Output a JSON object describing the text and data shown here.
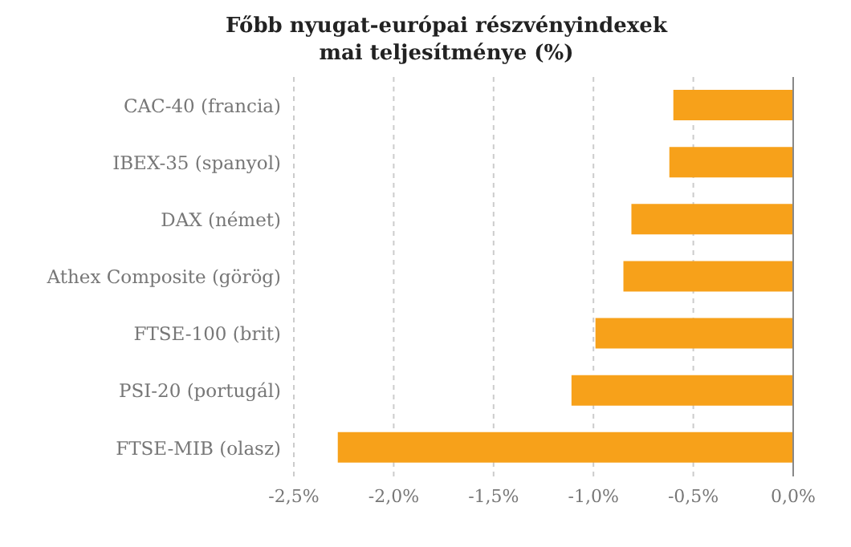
{
  "chart_data": {
    "type": "bar",
    "orientation": "horizontal",
    "title": "Főbb nyugat-európai részvényindexek mai teljesítménye (%)",
    "categories": [
      "CAC-40 (francia)",
      "IBEX-35 (spanyol)",
      "DAX (német)",
      "Athex Composite (görög)",
      "FTSE-100 (brit)",
      "PSI-20 (portugál)",
      "FTSE-MIB (olasz)"
    ],
    "values": [
      -0.6,
      -0.62,
      -0.81,
      -0.85,
      -0.99,
      -1.11,
      -2.28
    ],
    "color": "#f7a11a",
    "xlim": [
      -2.5,
      0
    ],
    "xticks": [
      {
        "value": -2.5,
        "label": "-2,5%"
      },
      {
        "value": -2,
        "label": "-2,0%"
      },
      {
        "value": -1.5,
        "label": "-1,5%"
      },
      {
        "value": -1,
        "label": "-1,0%"
      },
      {
        "value": -0.5,
        "label": "-0,5%"
      },
      {
        "value": 0,
        "label": "0,0%"
      }
    ],
    "grid": "x"
  }
}
